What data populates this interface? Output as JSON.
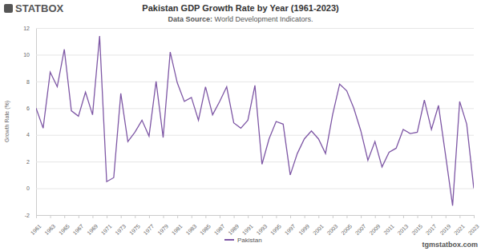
{
  "chart_data": {
    "type": "line",
    "title": "Pakistan GDP Growth Rate by Year (1961-2023)",
    "subtitle": "Data Source: World Development Indicators.",
    "y_label": "Growth Rate (%)",
    "annotations": [
      "STATBOX",
      "tgmstatbox.com"
    ],
    "x": [
      1961,
      1962,
      1963,
      1964,
      1965,
      1966,
      1967,
      1968,
      1969,
      1970,
      1971,
      1972,
      1973,
      1974,
      1975,
      1976,
      1977,
      1978,
      1979,
      1980,
      1981,
      1982,
      1983,
      1984,
      1985,
      1986,
      1987,
      1988,
      1989,
      1990,
      1991,
      1992,
      1993,
      1994,
      1995,
      1996,
      1997,
      1998,
      1999,
      2000,
      2001,
      2002,
      2003,
      2004,
      2005,
      2006,
      2007,
      2008,
      2009,
      2010,
      2011,
      2012,
      2013,
      2014,
      2015,
      2016,
      2017,
      2018,
      2019,
      2020,
      2021,
      2022,
      2023
    ],
    "series": [
      {
        "name": "Pakistan",
        "color": "#7e57a5",
        "values": [
          6.0,
          4.5,
          8.7,
          7.6,
          10.4,
          5.8,
          5.4,
          7.2,
          5.5,
          11.4,
          0.5,
          0.8,
          7.1,
          3.5,
          4.2,
          5.1,
          3.9,
          8.0,
          3.8,
          10.2,
          7.9,
          6.5,
          6.8,
          5.1,
          7.6,
          5.5,
          6.5,
          7.6,
          4.9,
          4.5,
          5.1,
          7.7,
          1.8,
          3.7,
          5.0,
          4.8,
          1.0,
          2.6,
          3.7,
          4.3,
          3.7,
          2.6,
          5.5,
          7.8,
          7.3,
          6.0,
          4.3,
          2.1,
          3.5,
          1.6,
          2.7,
          3.0,
          4.4,
          4.1,
          4.2,
          6.6,
          4.4,
          6.2,
          2.5,
          -1.3,
          6.5,
          4.8,
          0.0
        ]
      }
    ],
    "xlim": [
      1961,
      2023
    ],
    "xticks": [
      1961,
      1963,
      1965,
      1967,
      1969,
      1971,
      1973,
      1975,
      1977,
      1979,
      1981,
      1983,
      1985,
      1987,
      1989,
      1991,
      1993,
      1995,
      1997,
      1999,
      2001,
      2003,
      2005,
      2007,
      2009,
      2011,
      2013,
      2015,
      2017,
      2019,
      2021,
      2023
    ],
    "ylim": [
      -2,
      12
    ],
    "yticks": [
      -2,
      0,
      2,
      4,
      6,
      8,
      10,
      12
    ],
    "grid": true,
    "legend": "bottom"
  }
}
